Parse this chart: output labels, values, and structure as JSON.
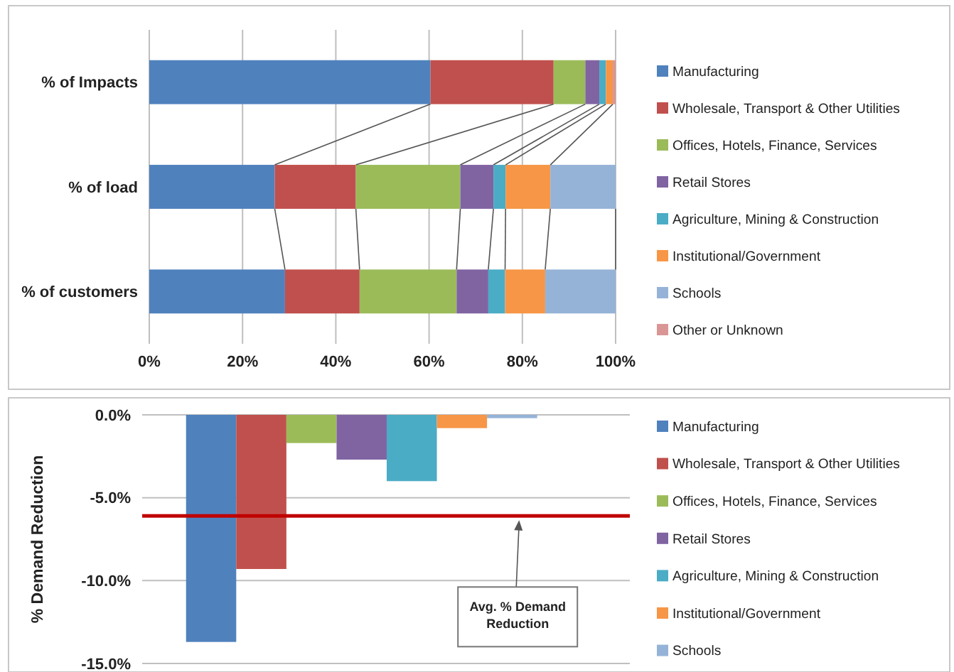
{
  "chart_data": [
    {
      "type": "bar",
      "orientation": "horizontal",
      "stacked": true,
      "categories": [
        "% of Impacts",
        "% of load",
        "% of customers"
      ],
      "xlim": [
        0,
        100
      ],
      "xticks": [
        {
          "value": 0,
          "label": "0%"
        },
        {
          "value": 20,
          "label": "20%"
        },
        {
          "value": 40,
          "label": "40%"
        },
        {
          "value": 60,
          "label": "60%"
        },
        {
          "value": 80,
          "label": "80%"
        },
        {
          "value": 100,
          "label": "100%"
        }
      ],
      "grid": "x",
      "legend": "right",
      "series": [
        {
          "name": "Manufacturing",
          "color": "#4f81bd",
          "values": [
            60.3,
            26.9,
            29.1
          ]
        },
        {
          "name": "Wholesale, Transport & Other Utilities",
          "color": "#c0504d",
          "values": [
            26.4,
            17.4,
            16.0
          ]
        },
        {
          "name": "Offices, Hotels, Finance, Services",
          "color": "#9bbb59",
          "values": [
            6.8,
            22.4,
            20.8
          ]
        },
        {
          "name": "Retail Stores",
          "color": "#8064a2",
          "values": [
            3.0,
            7.1,
            6.8
          ]
        },
        {
          "name": "Agriculture, Mining & Construction",
          "color": "#4bacc6",
          "values": [
            1.4,
            2.6,
            3.6
          ]
        },
        {
          "name": "Institutional/Government",
          "color": "#f79646",
          "values": [
            1.5,
            9.6,
            8.6
          ]
        },
        {
          "name": "Schools",
          "color": "#95b3d7",
          "values": [
            null,
            14.0,
            15.1
          ]
        },
        {
          "name": "Other or Unknown",
          "color": "#d99694",
          "values": [
            0.6,
            0,
            0
          ]
        }
      ]
    },
    {
      "type": "bar",
      "categories": [
        null
      ],
      "ylabel": "% Demand Reduction",
      "ylim": [
        -15,
        0
      ],
      "yticks": [
        {
          "value": 0,
          "label": "0.0%"
        },
        {
          "value": -5,
          "label": "-5.0%"
        },
        {
          "value": -10,
          "label": "-10.0%"
        },
        {
          "value": -15,
          "label": "-15.0%"
        }
      ],
      "grid": "y",
      "legend": "right",
      "ref_lines": [
        {
          "axis": "y",
          "value": -6.1,
          "label": "Avg. % Demand Reduction",
          "color": "#c00000"
        }
      ],
      "series": [
        {
          "name": "Manufacturing",
          "color": "#4f81bd",
          "values": [
            -13.7
          ]
        },
        {
          "name": "Wholesale, Transport & Other Utilities",
          "color": "#c0504d",
          "values": [
            -9.3
          ]
        },
        {
          "name": "Offices, Hotels, Finance, Services",
          "color": "#9bbb59",
          "values": [
            -1.7
          ]
        },
        {
          "name": "Retail Stores",
          "color": "#8064a2",
          "values": [
            -2.7
          ]
        },
        {
          "name": "Agriculture, Mining & Construction",
          "color": "#4bacc6",
          "values": [
            -4.0
          ]
        },
        {
          "name": "Institutional/Government",
          "color": "#f79646",
          "values": [
            -0.8
          ]
        },
        {
          "name": "Schools",
          "color": "#95b3d7",
          "values": [
            -0.2
          ]
        }
      ]
    }
  ]
}
